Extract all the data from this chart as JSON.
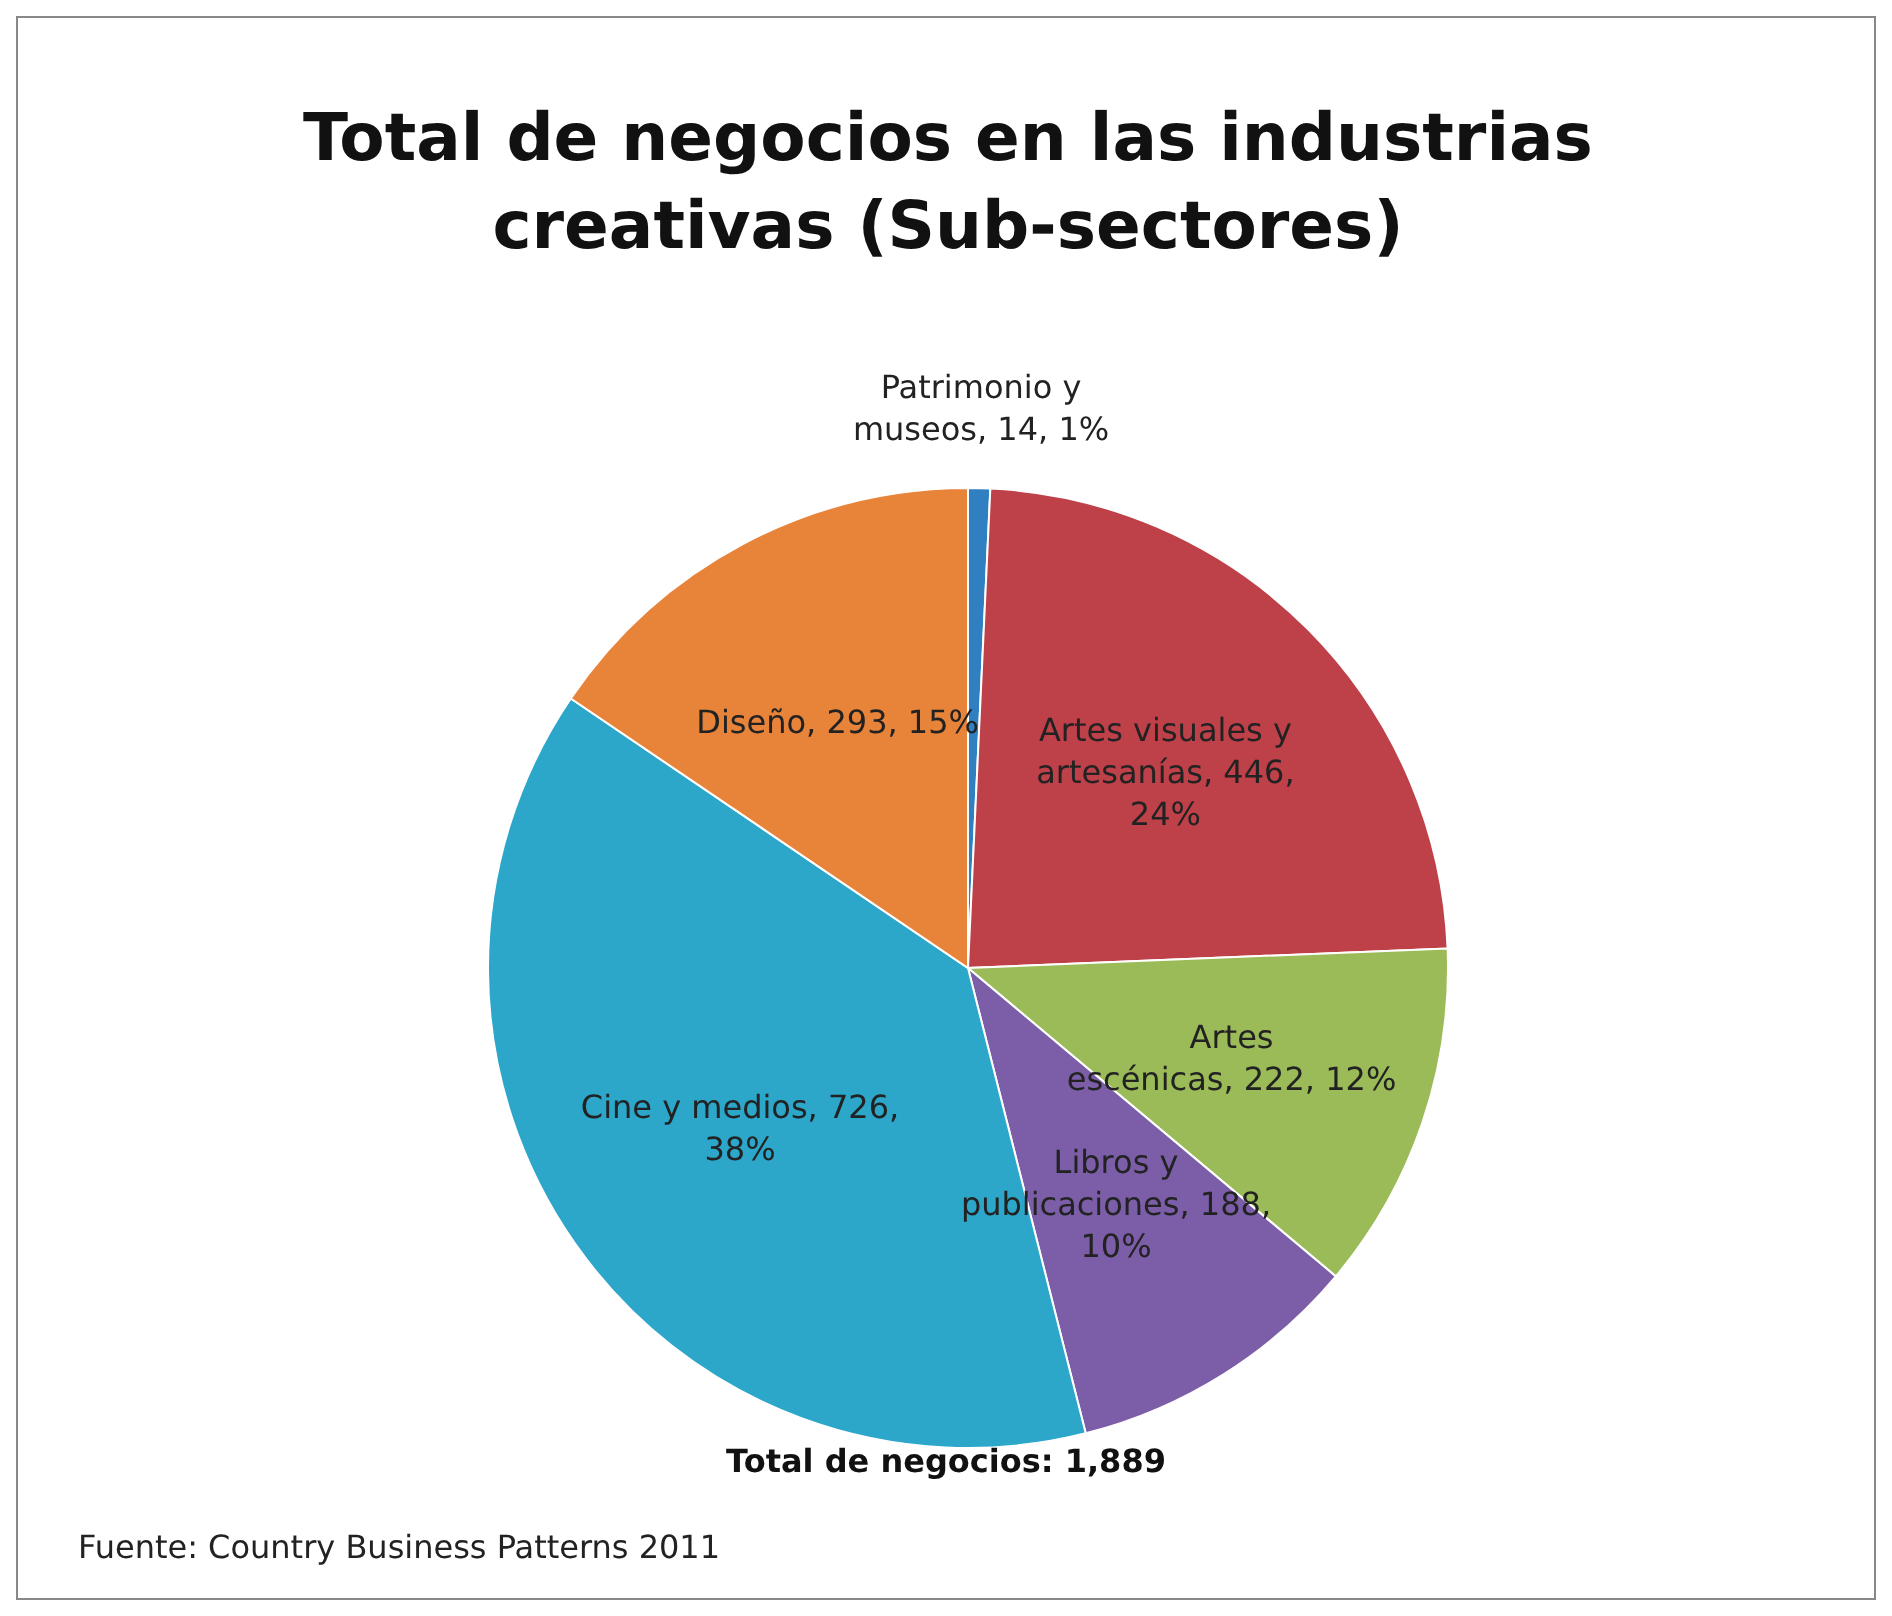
{
  "chart_data": {
    "type": "pie",
    "title": "Total de negocios en las industrias creativas (Sub-sectores)",
    "categories": [
      "Patrimonio y museos",
      "Artes visuales y artesanías",
      "Artes escénicas",
      "Libros y publicaciones",
      "Cine y medios",
      "Diseño"
    ],
    "values": [
      14,
      446,
      222,
      188,
      726,
      293
    ],
    "value_labels": [
      "14, 1%",
      "446, 24%",
      "222, 12%",
      "188, 10%",
      "726, 38%",
      "293, 15%"
    ],
    "colors": [
      "#2f7fc1",
      "#be4048",
      "#9bbb59",
      "#7b5ea7",
      "#2ca6c9",
      "#e8833a"
    ],
    "legend": false,
    "annotations": [
      "Total de negocios: 1,889",
      "Fuente: Country Business Patterns 2011"
    ]
  }
}
